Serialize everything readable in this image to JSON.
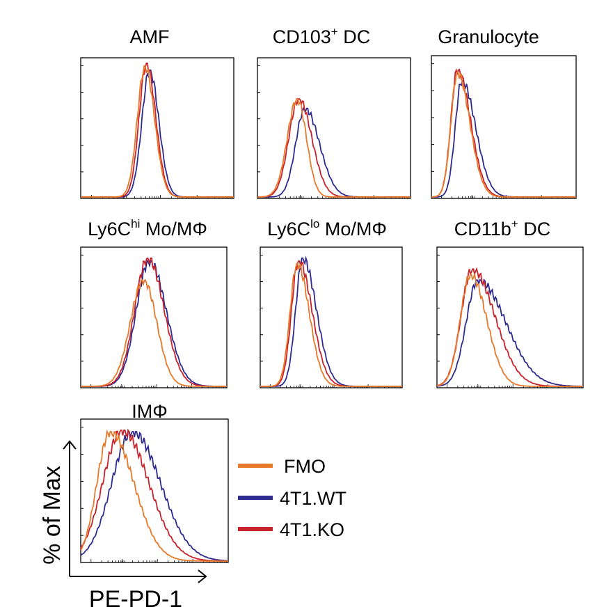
{
  "chart_data": {
    "type": "line",
    "figure": "flow cytometry histogram overlays",
    "xlabel": "PE-PD-1",
    "ylabel": "% of Max",
    "x_scale": "log",
    "ylim": [
      0,
      100
    ],
    "legend": {
      "placement": "right of IMΦ panel",
      "entries": [
        {
          "name": "FMO",
          "color": "#E8792A"
        },
        {
          "name": "4T1.WT",
          "color": "#2E2A8F"
        },
        {
          "name": "4T1.KO",
          "color": "#C8222A"
        }
      ]
    },
    "panels": [
      {
        "title": {
          "main": "AMF",
          "sup": "",
          "tail": ""
        },
        "series": [
          {
            "name": "FMO",
            "peak": 0.42,
            "spread": 0.05,
            "spread_right": 0.062,
            "height": 96
          },
          {
            "name": "4T1.WT",
            "peak": 0.45,
            "spread": 0.05,
            "spread_right": 0.06,
            "height": 93
          },
          {
            "name": "4T1.KO",
            "peak": 0.43,
            "spread": 0.048,
            "spread_right": 0.06,
            "height": 98
          }
        ]
      },
      {
        "title": {
          "main": "CD103",
          "sup": "+",
          "tail": " DC"
        },
        "series": [
          {
            "name": "FMO",
            "peak": 0.26,
            "spread": 0.065,
            "spread_right": 0.06,
            "height": 72
          },
          {
            "name": "4T1.WT",
            "peak": 0.31,
            "spread": 0.06,
            "spread_right": 0.095,
            "height": 65
          },
          {
            "name": "4T1.KO",
            "peak": 0.27,
            "spread": 0.065,
            "spread_right": 0.085,
            "height": 72
          }
        ]
      },
      {
        "title": {
          "main": "Granulocyte",
          "sup": "",
          "tail": ""
        },
        "series": [
          {
            "name": "FMO",
            "peak": 0.18,
            "spread": 0.045,
            "spread_right": 0.085,
            "height": 90
          },
          {
            "name": "4T1.WT",
            "peak": 0.21,
            "spread": 0.045,
            "spread_right": 0.095,
            "height": 84
          },
          {
            "name": "4T1.KO",
            "peak": 0.18,
            "spread": 0.045,
            "spread_right": 0.09,
            "height": 92
          }
        ]
      },
      {
        "title": {
          "main": "Ly6C",
          "sup": "hi",
          "tail": " Mo/MΦ"
        },
        "series": [
          {
            "name": "FMO",
            "peak": 0.43,
            "spread": 0.09,
            "spread_right": 0.09,
            "height": 78
          },
          {
            "name": "4T1.WT",
            "peak": 0.47,
            "spread": 0.09,
            "spread_right": 0.115,
            "height": 92
          },
          {
            "name": "4T1.KO",
            "peak": 0.46,
            "spread": 0.09,
            "spread_right": 0.11,
            "height": 94
          }
        ]
      },
      {
        "title": {
          "main": "Ly6C",
          "sup": "lo",
          "tail": " Mo/MΦ"
        },
        "series": [
          {
            "name": "FMO",
            "peak": 0.26,
            "spread": 0.05,
            "spread_right": 0.085,
            "height": 90
          },
          {
            "name": "4T1.WT",
            "peak": 0.3,
            "spread": 0.05,
            "spread_right": 0.095,
            "height": 94
          },
          {
            "name": "4T1.KO",
            "peak": 0.27,
            "spread": 0.05,
            "spread_right": 0.095,
            "height": 92
          }
        ]
      },
      {
        "title": {
          "main": "CD11b",
          "sup": "+",
          "tail": " DC"
        },
        "series": [
          {
            "name": "FMO",
            "peak": 0.23,
            "spread": 0.07,
            "spread_right": 0.11,
            "height": 82
          },
          {
            "name": "4T1.WT",
            "peak": 0.28,
            "spread": 0.08,
            "spread_right": 0.19,
            "height": 78
          },
          {
            "name": "4T1.KO",
            "peak": 0.24,
            "spread": 0.075,
            "spread_right": 0.155,
            "height": 86
          }
        ]
      },
      {
        "title": {
          "main": "IMΦ",
          "sup": "",
          "tail": ""
        },
        "series": [
          {
            "name": "FMO",
            "peak": 0.2,
            "spread": 0.09,
            "spread_right": 0.16,
            "height": 93
          },
          {
            "name": "4T1.WT",
            "peak": 0.35,
            "spread": 0.14,
            "spread_right": 0.19,
            "height": 93
          },
          {
            "name": "4T1.KO",
            "peak": 0.28,
            "spread": 0.13,
            "spread_right": 0.18,
            "height": 94
          }
        ]
      }
    ]
  }
}
